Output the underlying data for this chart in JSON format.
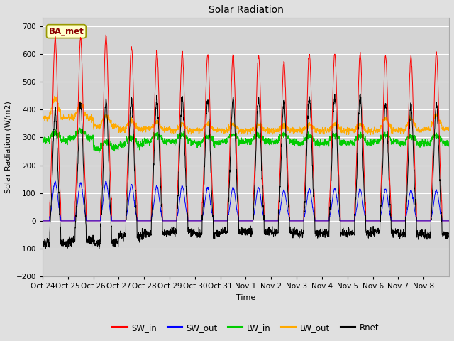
{
  "title": "Solar Radiation",
  "ylabel": "Solar Radiation (W/m2)",
  "xlabel": "Time",
  "ylim": [
    -200,
    730
  ],
  "yticks": [
    -200,
    -100,
    0,
    100,
    200,
    300,
    400,
    500,
    600,
    700
  ],
  "x_tick_labels": [
    "Oct 24",
    "Oct 25",
    "Oct 26",
    "Oct 27",
    "Oct 28",
    "Oct 29",
    "Oct 30",
    "Oct 31",
    "Nov 1",
    "Nov 2",
    "Nov 3",
    "Nov 4",
    "Nov 5",
    "Nov 6",
    "Nov 7",
    "Nov 8"
  ],
  "n_days": 16,
  "station_label": "BA_met",
  "colors": {
    "SW_in": "#ff0000",
    "SW_out": "#0000ff",
    "LW_in": "#00cc00",
    "LW_out": "#ffaa00",
    "Rnet": "#000000"
  },
  "fig_bg": "#e0e0e0",
  "plot_bg": "#d4d4d4",
  "grid_color": "#ffffff",
  "legend_entries": [
    "SW_in",
    "SW_out",
    "LW_in",
    "LW_out",
    "Rnet"
  ],
  "peaks_SW_in": [
    660,
    655,
    665,
    625,
    610,
    605,
    600,
    598,
    598,
    570,
    600,
    600,
    600,
    595,
    590,
    605
  ],
  "peaks_SW_out": [
    140,
    135,
    140,
    130,
    125,
    125,
    120,
    120,
    120,
    110,
    115,
    115,
    115,
    115,
    110,
    110
  ]
}
